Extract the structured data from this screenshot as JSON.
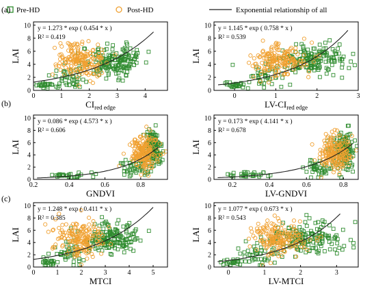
{
  "legend": {
    "pre_label": "Pre-HD",
    "post_label": "Post-HD",
    "curve_label": "Exponential relationship of all"
  },
  "colors": {
    "pre": "#2e8b2e",
    "post": "#f0a030",
    "curve": "#222222",
    "axis": "#000000"
  },
  "row_tags": [
    "(a)",
    "(b)",
    "(c)"
  ],
  "chart_data": [
    {
      "type": "scatter",
      "id": "ci-red-edge",
      "xlabel": "CI",
      "xlabel_sub": "red edge",
      "ylabel": "LAI",
      "xlim": [
        0,
        4.8
      ],
      "ylim": [
        0,
        10.5
      ],
      "xticks": [
        0,
        1,
        2,
        3,
        4
      ],
      "yticks": [
        0,
        2,
        4,
        6,
        8,
        10
      ],
      "equation": "y = 1.273 * exp ( 0.454 * x )",
      "r2": "R² = 0.419",
      "fit": {
        "a": 1.273,
        "b": 0.454,
        "xmin": 0.0,
        "xmax": 4.3
      },
      "clusters": [
        {
          "series": "pre",
          "n": 25,
          "xmu": 0.45,
          "xsd": 0.18,
          "ymu": 0.75,
          "ysd": 0.22
        },
        {
          "series": "pre",
          "n": 40,
          "xmu": 1.3,
          "xsd": 0.3,
          "ymu": 1.8,
          "ysd": 0.8
        },
        {
          "series": "pre",
          "n": 170,
          "xmu": 2.9,
          "xsd": 0.55,
          "ymu": 4.6,
          "ysd": 1.2
        },
        {
          "series": "post",
          "n": 180,
          "xmu": 1.65,
          "xsd": 0.4,
          "ymu": 4.6,
          "ysd": 1.3
        }
      ]
    },
    {
      "type": "scatter",
      "id": "lv-ci-red-edge",
      "xlabel": "LV-CI",
      "xlabel_sub": "red edge",
      "ylabel": "LAI",
      "xlim": [
        -0.5,
        3.0
      ],
      "ylim": [
        0,
        10.5
      ],
      "xticks": [
        0,
        1,
        2,
        3
      ],
      "yticks": [
        0,
        2,
        4,
        6,
        8,
        10
      ],
      "equation": "y = 1.145 * exp ( 0.758 * x )",
      "r2": "R² = 0.539",
      "fit": {
        "a": 1.145,
        "b": 0.758,
        "xmin": -0.4,
        "xmax": 2.75
      },
      "clusters": [
        {
          "series": "pre",
          "n": 25,
          "xmu": 0.0,
          "xsd": 0.15,
          "ymu": 0.75,
          "ysd": 0.22
        },
        {
          "series": "pre",
          "n": 40,
          "xmu": 0.65,
          "xsd": 0.25,
          "ymu": 1.8,
          "ysd": 0.8
        },
        {
          "series": "pre",
          "n": 170,
          "xmu": 1.85,
          "xsd": 0.4,
          "ymu": 4.7,
          "ysd": 1.2
        },
        {
          "series": "post",
          "n": 180,
          "xmu": 1.1,
          "xsd": 0.33,
          "ymu": 4.6,
          "ysd": 1.3
        }
      ]
    },
    {
      "type": "scatter",
      "id": "gndvi",
      "xlabel": "GNDVI",
      "xlabel_sub": "",
      "ylabel": "LAI",
      "xlim": [
        0.2,
        0.95
      ],
      "ylim": [
        0,
        10.5
      ],
      "xticks": [
        0.2,
        0.4,
        0.6,
        0.8
      ],
      "yticks": [
        0,
        2,
        4,
        6,
        8,
        10
      ],
      "equation": "y = 0.086 * exp ( 4.573 * x )",
      "r2": "R² = 0.606",
      "fit": {
        "a": 0.086,
        "b": 4.573,
        "xmin": 0.22,
        "xmax": 0.9
      },
      "clusters": [
        {
          "series": "pre",
          "n": 30,
          "xmu": 0.4,
          "xsd": 0.06,
          "ymu": 0.7,
          "ysd": 0.22
        },
        {
          "series": "pre",
          "n": 40,
          "xmu": 0.76,
          "xsd": 0.04,
          "ymu": 1.8,
          "ysd": 0.7
        },
        {
          "series": "pre",
          "n": 160,
          "xmu": 0.865,
          "xsd": 0.025,
          "ymu": 4.8,
          "ysd": 1.6
        },
        {
          "series": "post",
          "n": 180,
          "xmu": 0.815,
          "xsd": 0.045,
          "ymu": 4.4,
          "ysd": 1.4
        }
      ]
    },
    {
      "type": "scatter",
      "id": "lv-gndvi",
      "xlabel": "LV-GNDVI",
      "xlabel_sub": "",
      "ylabel": "LAI",
      "xlim": [
        0.1,
        0.88
      ],
      "ylim": [
        0,
        10.5
      ],
      "xticks": [
        0.2,
        0.4,
        0.6,
        0.8
      ],
      "yticks": [
        0,
        2,
        4,
        6,
        8,
        10
      ],
      "equation": "y = 0.173 * exp ( 4.141 * x )",
      "r2": "R² = 0.678",
      "fit": {
        "a": 0.173,
        "b": 4.141,
        "xmin": 0.12,
        "xmax": 0.85
      },
      "clusters": [
        {
          "series": "pre",
          "n": 30,
          "xmu": 0.3,
          "xsd": 0.07,
          "ymu": 0.7,
          "ysd": 0.22
        },
        {
          "series": "pre",
          "n": 40,
          "xmu": 0.66,
          "xsd": 0.04,
          "ymu": 1.8,
          "ysd": 0.7
        },
        {
          "series": "pre",
          "n": 160,
          "xmu": 0.8,
          "xsd": 0.03,
          "ymu": 4.9,
          "ysd": 1.6
        },
        {
          "series": "post",
          "n": 180,
          "xmu": 0.76,
          "xsd": 0.04,
          "ymu": 4.5,
          "ysd": 1.4
        }
      ]
    },
    {
      "type": "scatter",
      "id": "mtci",
      "xlabel": "MTCI",
      "xlabel_sub": "",
      "ylabel": "LAI",
      "xlim": [
        0,
        5.6
      ],
      "ylim": [
        0,
        10.5
      ],
      "xticks": [
        0,
        1,
        2,
        3,
        4,
        5
      ],
      "yticks": [
        0,
        2,
        4,
        6,
        8,
        10
      ],
      "equation": "y = 1.248 * exp ( 0.411 * x )",
      "r2": "R² = 0.385",
      "fit": {
        "a": 1.248,
        "b": 0.411,
        "xmin": 0.0,
        "xmax": 5.0
      },
      "clusters": [
        {
          "series": "pre",
          "n": 25,
          "xmu": 0.7,
          "xsd": 0.2,
          "ymu": 0.8,
          "ysd": 0.25
        },
        {
          "series": "pre",
          "n": 40,
          "xmu": 1.5,
          "xsd": 0.35,
          "ymu": 1.9,
          "ysd": 0.8
        },
        {
          "series": "pre",
          "n": 170,
          "xmu": 3.3,
          "xsd": 0.65,
          "ymu": 4.7,
          "ysd": 1.3
        },
        {
          "series": "post",
          "n": 180,
          "xmu": 1.9,
          "xsd": 0.5,
          "ymu": 4.5,
          "ysd": 1.4
        }
      ]
    },
    {
      "type": "scatter",
      "id": "lv-mtci",
      "xlabel": "LV-MTCI",
      "xlabel_sub": "",
      "ylabel": "LAI",
      "xlim": [
        -0.4,
        3.6
      ],
      "ylim": [
        0,
        10.5
      ],
      "xticks": [
        0,
        1,
        2,
        3
      ],
      "yticks": [
        0,
        2,
        4,
        6,
        8,
        10
      ],
      "equation": "y = 1.077 * exp ( 0.673 * x )",
      "r2": "R² = 0.543",
      "fit": {
        "a": 1.077,
        "b": 0.673,
        "xmin": -0.3,
        "xmax": 3.1
      },
      "clusters": [
        {
          "series": "pre",
          "n": 25,
          "xmu": 0.1,
          "xsd": 0.18,
          "ymu": 0.8,
          "ysd": 0.25
        },
        {
          "series": "pre",
          "n": 40,
          "xmu": 0.8,
          "xsd": 0.28,
          "ymu": 1.9,
          "ysd": 0.8
        },
        {
          "series": "pre",
          "n": 170,
          "xmu": 2.1,
          "xsd": 0.48,
          "ymu": 4.7,
          "ysd": 1.3
        },
        {
          "series": "post",
          "n": 180,
          "xmu": 1.4,
          "xsd": 0.4,
          "ymu": 4.5,
          "ysd": 1.4
        }
      ]
    }
  ]
}
